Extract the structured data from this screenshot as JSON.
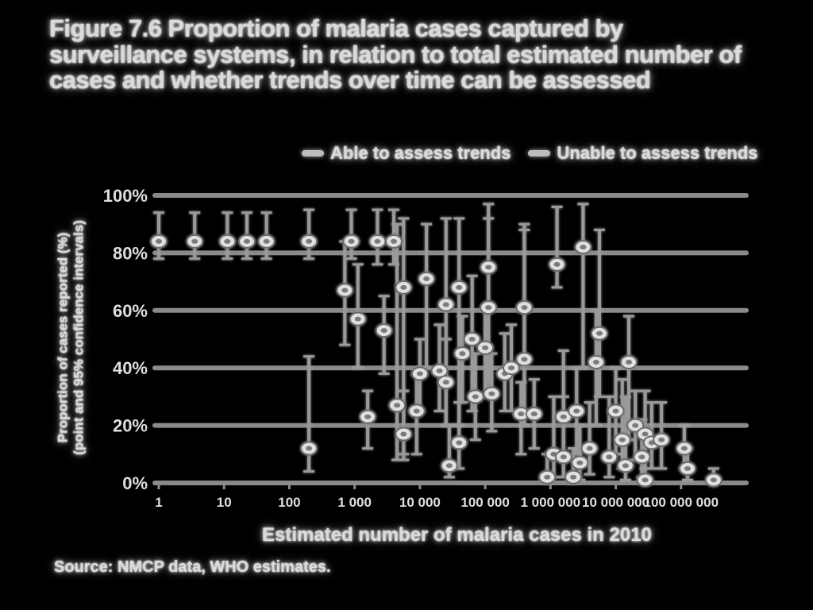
{
  "figure": {
    "title": "Figure 7.6 Proportion of malaria cases captured by surveillance systems, in relation to total estimated number of cases and whether trends over time can be assessed",
    "source": "Source: NMCP data, WHO estimates."
  },
  "chart_data": {
    "type": "scatter",
    "xlabel": "Estimated number of malaria cases in 2010",
    "ylabel": "Proportion of cases reported (%)",
    "ylabel_sub": "(point and 95% confidence intervals)",
    "x_ticks": [
      "1",
      "10",
      "100",
      "1 000",
      "10 000",
      "100 000",
      "1 000 000",
      "10 000 000",
      "100 000 000"
    ],
    "y_ticks": [
      "0%",
      "20%",
      "40%",
      "60%",
      "80%",
      "100%"
    ],
    "ylim": [
      0,
      100
    ],
    "x_log_range": [
      0,
      9
    ],
    "grid": "horizontal",
    "legend_position": "top",
    "series": [
      {
        "name": "Able to assess trends",
        "color": "#d0d0d0",
        "points": [
          {
            "x": 0,
            "y": 84,
            "lo": 78,
            "hi": 94
          },
          {
            "x": 0.55,
            "y": 84,
            "lo": 78,
            "hi": 94
          },
          {
            "x": 1.05,
            "y": 84,
            "lo": 78,
            "hi": 94
          },
          {
            "x": 1.35,
            "y": 84,
            "lo": 78,
            "hi": 94
          },
          {
            "x": 1.65,
            "y": 84,
            "lo": 78,
            "hi": 94
          },
          {
            "x": 2.3,
            "y": 84,
            "lo": 78,
            "hi": 95
          },
          {
            "x": 2.95,
            "y": 84,
            "lo": 78,
            "hi": 95
          },
          {
            "x": 3.35,
            "y": 84,
            "lo": 76,
            "hi": 95
          },
          {
            "x": 3.6,
            "y": 84,
            "lo": 76,
            "hi": 95
          },
          {
            "x": 2.85,
            "y": 67,
            "lo": 48,
            "hi": 84
          },
          {
            "x": 3.05,
            "y": 57,
            "lo": 40,
            "hi": 76
          },
          {
            "x": 3.45,
            "y": 53,
            "lo": 38,
            "hi": 65
          },
          {
            "x": 3.75,
            "y": 68,
            "lo": 10,
            "hi": 92
          },
          {
            "x": 4.1,
            "y": 71,
            "lo": 40,
            "hi": 90
          },
          {
            "x": 4.4,
            "y": 62,
            "lo": 20,
            "hi": 92
          },
          {
            "x": 4.6,
            "y": 68,
            "lo": 20,
            "hi": 92
          },
          {
            "x": 4.8,
            "y": 50,
            "lo": 25,
            "hi": 72
          },
          {
            "x": 5.05,
            "y": 75,
            "lo": 30,
            "hi": 97
          },
          {
            "x": 5.05,
            "y": 61,
            "lo": 30,
            "hi": 92
          },
          {
            "x": 5.6,
            "y": 61,
            "lo": 20,
            "hi": 90
          },
          {
            "x": 5.6,
            "y": 43,
            "lo": 20,
            "hi": 88
          },
          {
            "x": 6.1,
            "y": 76,
            "lo": 68,
            "hi": 96
          },
          {
            "x": 6.5,
            "y": 82,
            "lo": 40,
            "hi": 97
          },
          {
            "x": 6.75,
            "y": 52,
            "lo": 30,
            "hi": 88
          },
          {
            "x": 6.7,
            "y": 42,
            "lo": 20,
            "hi": 60
          },
          {
            "x": 7.2,
            "y": 42,
            "lo": 15,
            "hi": 58
          }
        ]
      },
      {
        "name": "Unable to assess trends",
        "color": "#b5b5b5",
        "points": [
          {
            "x": 2.3,
            "y": 12,
            "lo": 4,
            "hi": 44
          },
          {
            "x": 3.2,
            "y": 23,
            "lo": 12,
            "hi": 32
          },
          {
            "x": 3.65,
            "y": 27,
            "lo": 8,
            "hi": 90
          },
          {
            "x": 3.75,
            "y": 17,
            "lo": 8,
            "hi": 32
          },
          {
            "x": 3.95,
            "y": 25,
            "lo": 10,
            "hi": 38
          },
          {
            "x": 4.0,
            "y": 38,
            "lo": 25,
            "hi": 50
          },
          {
            "x": 4.3,
            "y": 39,
            "lo": 25,
            "hi": 55
          },
          {
            "x": 4.4,
            "y": 35,
            "lo": 20,
            "hi": 50
          },
          {
            "x": 4.65,
            "y": 45,
            "lo": 28,
            "hi": 58
          },
          {
            "x": 4.85,
            "y": 30,
            "lo": 15,
            "hi": 45
          },
          {
            "x": 4.6,
            "y": 14,
            "lo": 5,
            "hi": 28
          },
          {
            "x": 4.45,
            "y": 6,
            "lo": 2,
            "hi": 20
          },
          {
            "x": 5.0,
            "y": 47,
            "lo": 30,
            "hi": 60
          },
          {
            "x": 5.1,
            "y": 31,
            "lo": 18,
            "hi": 45
          },
          {
            "x": 5.3,
            "y": 38,
            "lo": 25,
            "hi": 52
          },
          {
            "x": 5.4,
            "y": 40,
            "lo": 25,
            "hi": 55
          },
          {
            "x": 5.55,
            "y": 24,
            "lo": 10,
            "hi": 35
          },
          {
            "x": 5.75,
            "y": 24,
            "lo": 12,
            "hi": 36
          },
          {
            "x": 6.05,
            "y": 10,
            "lo": 2,
            "hi": 30
          },
          {
            "x": 6.2,
            "y": 9,
            "lo": 2,
            "hi": 30
          },
          {
            "x": 5.95,
            "y": 2,
            "lo": 0,
            "hi": 10
          },
          {
            "x": 6.2,
            "y": 23,
            "lo": 10,
            "hi": 46
          },
          {
            "x": 6.4,
            "y": 25,
            "lo": 10,
            "hi": 40
          },
          {
            "x": 6.45,
            "y": 7,
            "lo": 1,
            "hi": 20
          },
          {
            "x": 6.35,
            "y": 2,
            "lo": 0,
            "hi": 12
          },
          {
            "x": 6.6,
            "y": 12,
            "lo": 3,
            "hi": 28
          },
          {
            "x": 6.9,
            "y": 9,
            "lo": 2,
            "hi": 30
          },
          {
            "x": 7.0,
            "y": 25,
            "lo": 10,
            "hi": 40
          },
          {
            "x": 7.1,
            "y": 15,
            "lo": 5,
            "hi": 36
          },
          {
            "x": 7.15,
            "y": 6,
            "lo": 1,
            "hi": 30
          },
          {
            "x": 7.3,
            "y": 20,
            "lo": 8,
            "hi": 32
          },
          {
            "x": 7.45,
            "y": 17,
            "lo": 5,
            "hi": 32
          },
          {
            "x": 7.55,
            "y": 14,
            "lo": 5,
            "hi": 28
          },
          {
            "x": 7.4,
            "y": 9,
            "lo": 2,
            "hi": 22
          },
          {
            "x": 7.45,
            "y": 1,
            "lo": 0,
            "hi": 8
          },
          {
            "x": 7.7,
            "y": 15,
            "lo": 5,
            "hi": 28
          },
          {
            "x": 8.05,
            "y": 12,
            "lo": 5,
            "hi": 20
          },
          {
            "x": 8.1,
            "y": 5,
            "lo": 1,
            "hi": 12
          },
          {
            "x": 8.5,
            "y": 1,
            "lo": 0,
            "hi": 5
          }
        ]
      }
    ]
  }
}
